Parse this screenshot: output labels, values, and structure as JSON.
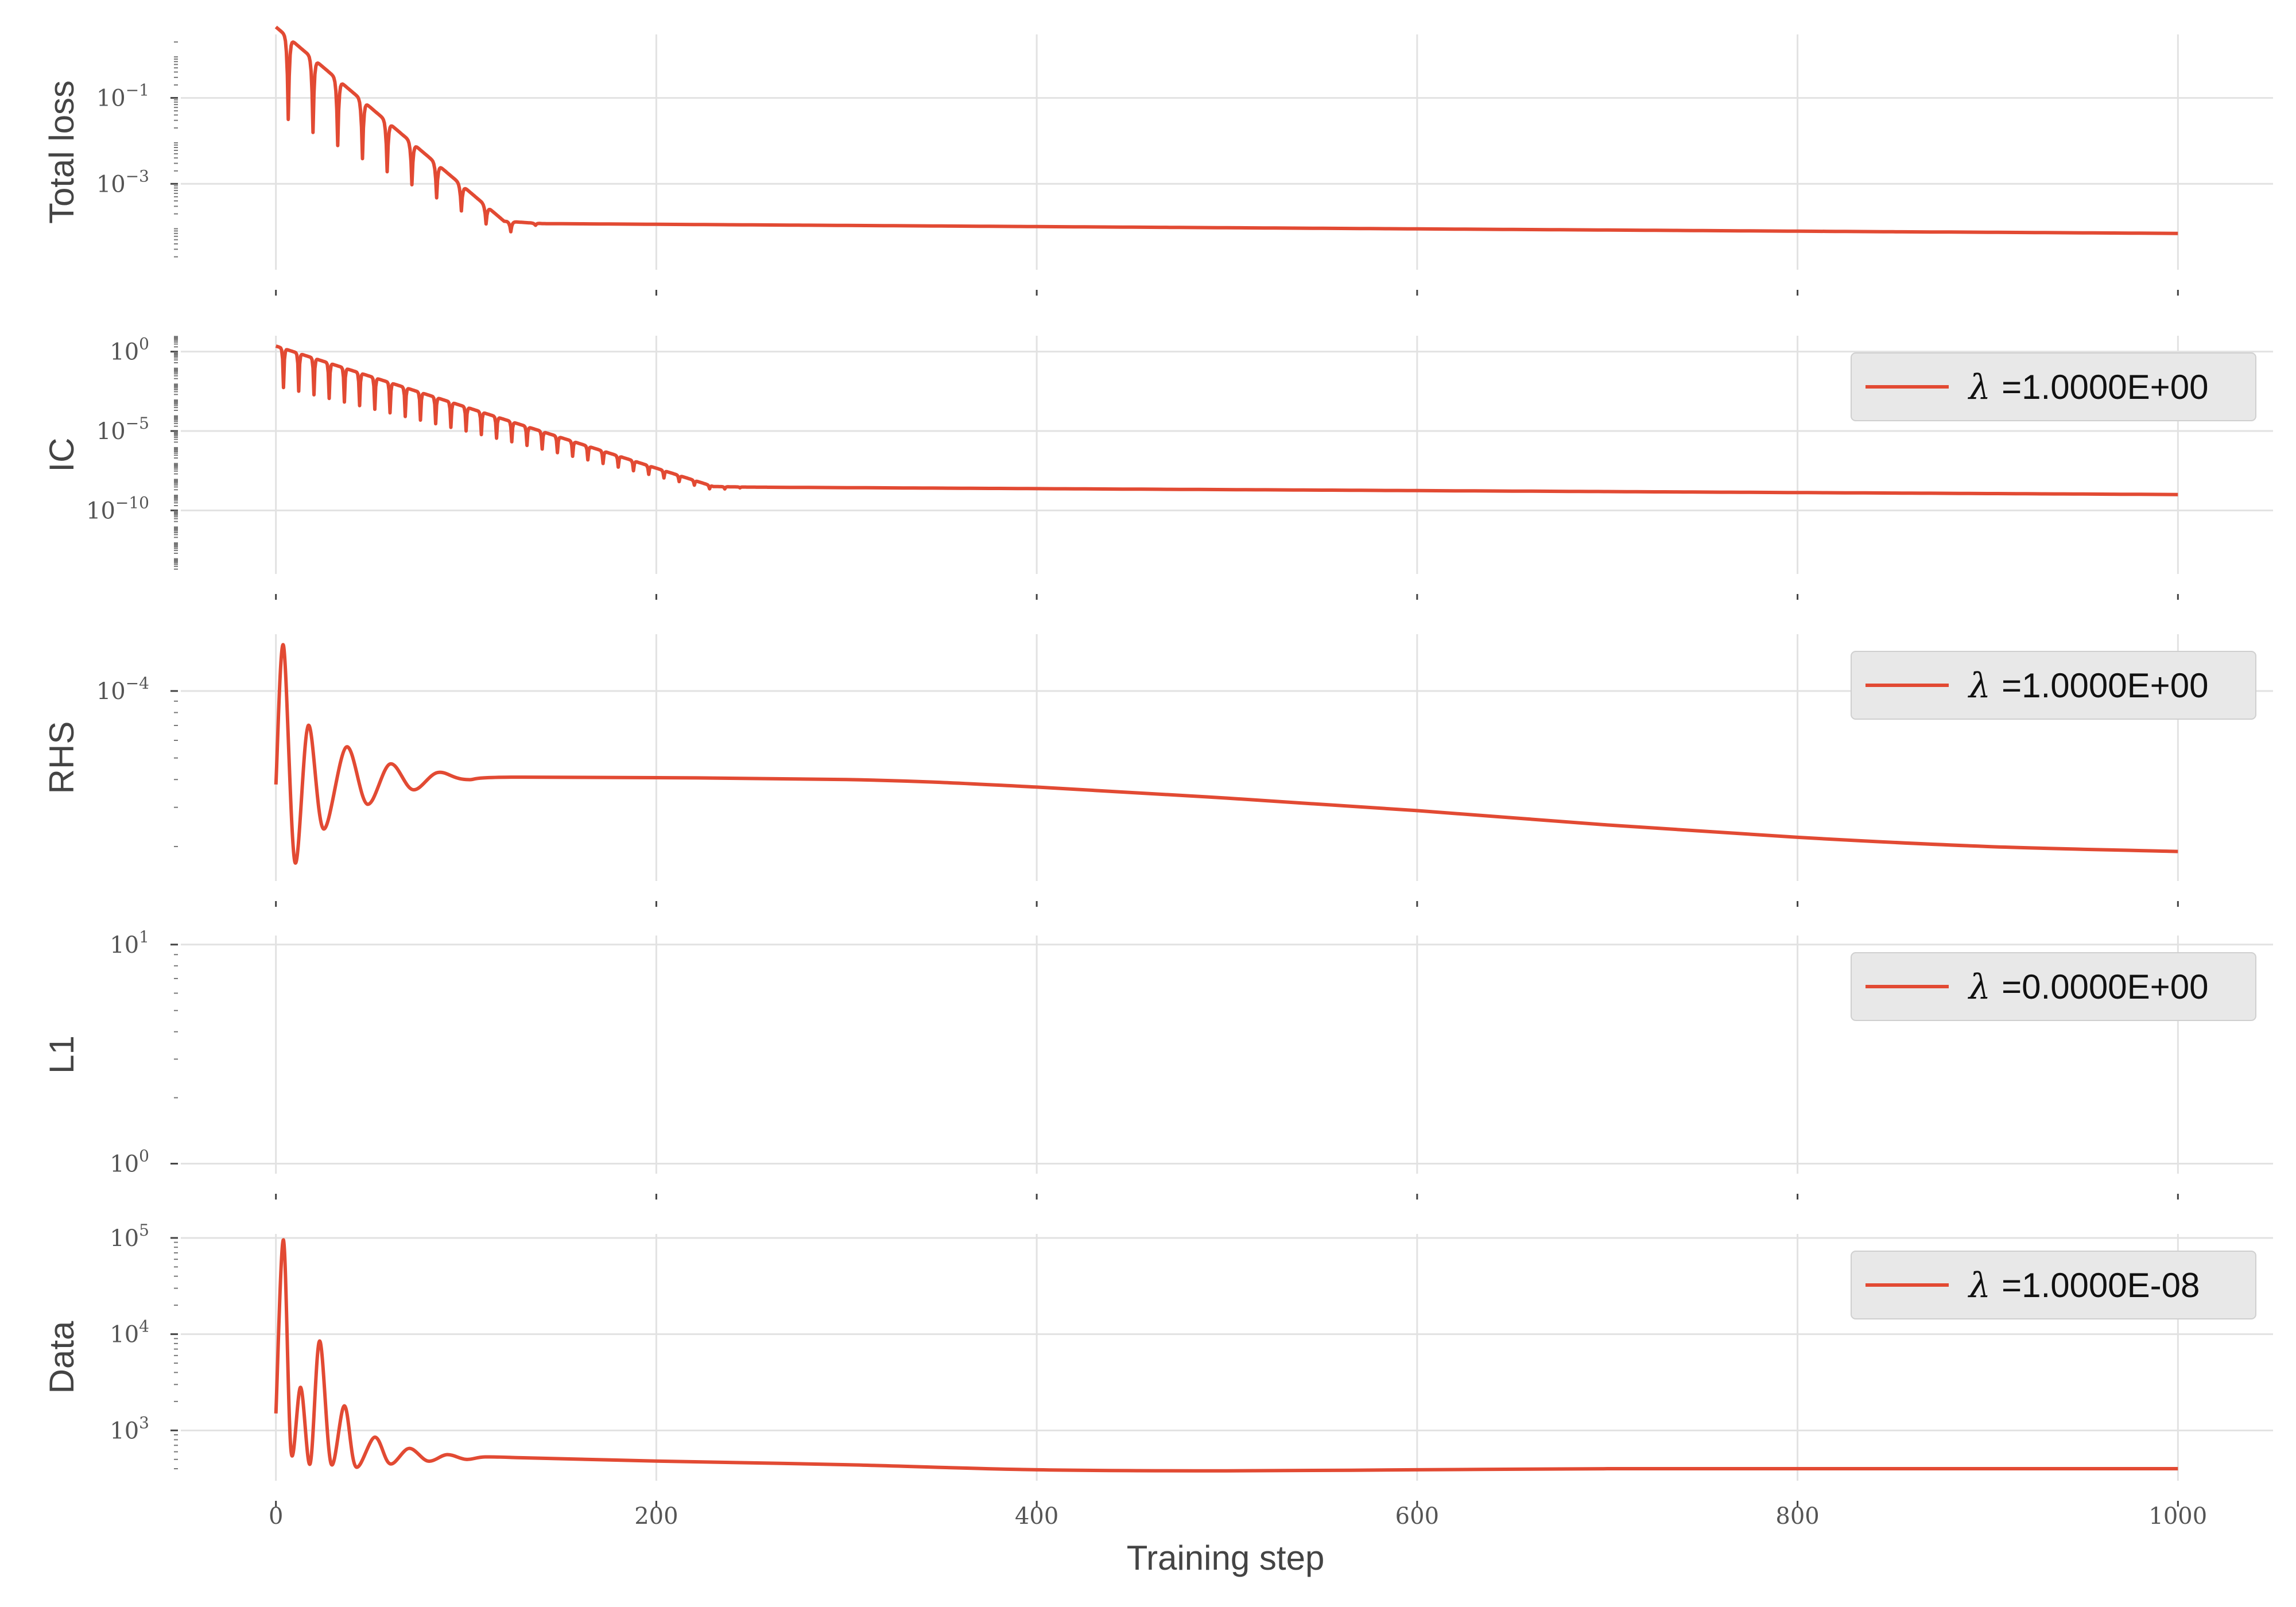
{
  "colors": {
    "series": "#E24A33",
    "grid": "#e2e2e2",
    "legend_bg": "#e8e8e8"
  },
  "chart_data": [
    {
      "type": "line",
      "ylabel": "Total loss",
      "yscale": "log",
      "ylim": [
        1e-05,
        3
      ],
      "yticks": [
        {
          "base": "10",
          "exp": "−1",
          "value": 0.1
        },
        {
          "base": "10",
          "exp": "−3",
          "value": 0.001
        }
      ],
      "xlim": [
        -50,
        1050
      ],
      "xticks": [
        0,
        200,
        400,
        600,
        800,
        1000
      ],
      "grid": true,
      "series": [
        {
          "kind": "oscillating-decay",
          "start": 2.0,
          "plateau_start": 0.00012,
          "end": 7e-05,
          "oscillation_period": 13,
          "oscillation_until": 120,
          "dip_depth_decades": 2.0,
          "x": [
            0,
            1000
          ]
        }
      ]
    },
    {
      "type": "line",
      "ylabel": "IC",
      "yscale": "log",
      "ylim": [
        1e-14,
        10
      ],
      "yticks": [
        {
          "base": "10",
          "exp": "0",
          "value": 1
        },
        {
          "base": "10",
          "exp": "−5",
          "value": 1e-05
        },
        {
          "base": "10",
          "exp": "−10",
          "value": 1e-10
        }
      ],
      "xlim": [
        -50,
        1050
      ],
      "xticks": [
        0,
        200,
        400,
        600,
        800,
        1000
      ],
      "grid": true,
      "legend": {
        "label": "=1.0000E+00",
        "symbol": "λ",
        "loc": "upper right"
      },
      "series": [
        {
          "kind": "oscillating-decay",
          "start": 1.0,
          "plateau_start": 3e-09,
          "end": 1e-09,
          "oscillation_period": 8,
          "oscillation_until": 230,
          "dip_depth_decades": 2.5,
          "x": [
            0,
            1000
          ]
        }
      ]
    },
    {
      "type": "line",
      "ylabel": "RHS",
      "yscale": "log",
      "ylim": [
        1.4e-05,
        0.00018
      ],
      "yticks": [
        {
          "base": "10",
          "exp": "−4",
          "value": 0.0001
        }
      ],
      "xlim": [
        -50,
        1050
      ],
      "xticks": [
        0,
        200,
        400,
        600,
        800,
        1000
      ],
      "grid": true,
      "legend": {
        "label": "=1.0000E+00",
        "symbol": "λ",
        "loc": "upper right"
      },
      "series": [
        {
          "kind": "damped-oscillation",
          "x": [
            0,
            4,
            10,
            17,
            25,
            37,
            48,
            60,
            72,
            85,
            100,
            130,
            300,
            400,
            500,
            600,
            700,
            800,
            900,
            1000
          ],
          "y": [
            3.8e-05,
            0.00016,
            1.7e-05,
            7e-05,
            2.4e-05,
            5.6e-05,
            3.1e-05,
            4.7e-05,
            3.6e-05,
            4.3e-05,
            4e-05,
            4.1e-05,
            4e-05,
            3.7e-05,
            3.3e-05,
            2.9e-05,
            2.5e-05,
            2.2e-05,
            2e-05,
            1.9e-05
          ]
        }
      ]
    },
    {
      "type": "line",
      "ylabel": "L1",
      "yscale": "log",
      "ylim": [
        0.9,
        11
      ],
      "yticks": [
        {
          "base": "10",
          "exp": "1",
          "value": 10
        },
        {
          "base": "10",
          "exp": "0",
          "value": 1
        }
      ],
      "xlim": [
        -50,
        1050
      ],
      "xticks": [
        0,
        200,
        400,
        600,
        800,
        1000
      ],
      "grid": true,
      "legend": {
        "label": "=0.0000E+00",
        "symbol": "λ",
        "loc": "upper right"
      },
      "series": []
    },
    {
      "type": "line",
      "ylabel": "Data",
      "yscale": "log",
      "ylim": [
        300,
        110000
      ],
      "yticks": [
        {
          "base": "10",
          "exp": "5",
          "value": 100000
        },
        {
          "base": "10",
          "exp": "4",
          "value": 10000
        },
        {
          "base": "10",
          "exp": "3",
          "value": 1000
        }
      ],
      "xlim": [
        -50,
        1050
      ],
      "xticks": [
        0,
        200,
        400,
        600,
        800,
        1000
      ],
      "xlabel": "Training step",
      "grid": true,
      "legend": {
        "label": "=1.0000E-08",
        "symbol": "λ",
        "loc": "upper right"
      },
      "series": [
        {
          "kind": "damped-oscillation",
          "x": [
            0,
            4,
            8,
            13,
            18,
            23,
            29,
            36,
            42,
            52,
            60,
            70,
            80,
            90,
            100,
            110,
            130,
            200,
            300,
            400,
            500,
            600,
            700,
            800,
            900,
            1000
          ],
          "y": [
            1500,
            95000,
            600,
            2800,
            450,
            8500,
            450,
            1800,
            420,
            850,
            450,
            650,
            480,
            560,
            500,
            530,
            520,
            480,
            440,
            390,
            380,
            390,
            400,
            400,
            400,
            400
          ]
        }
      ]
    }
  ]
}
